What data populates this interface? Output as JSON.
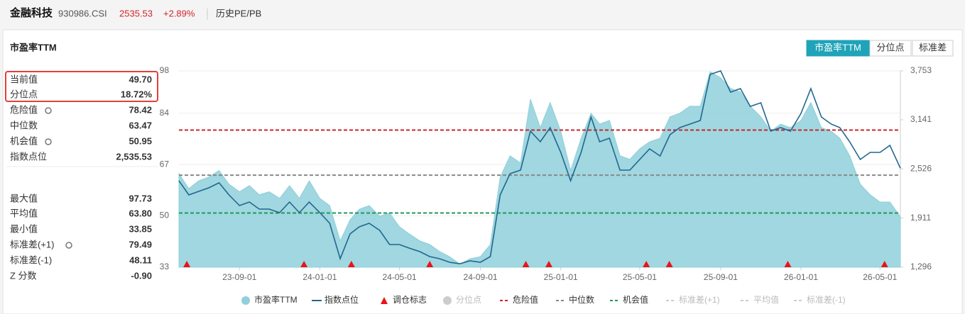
{
  "header": {
    "name": "金融科技",
    "code": "930986.CSI",
    "price": "2535.53",
    "change": "+2.89%",
    "tab": "历史PE/PB"
  },
  "panel": {
    "title": "市盈率TTM",
    "buttons": [
      "市盈率TTM",
      "分位点",
      "标准差"
    ]
  },
  "stats": [
    {
      "name": "当前值",
      "value": "49.70"
    },
    {
      "name": "分位点",
      "value": "18.72%"
    },
    {
      "name": "危险值",
      "value": "78.42"
    },
    {
      "name": "中位数",
      "value": "63.47"
    },
    {
      "name": "机会值",
      "value": "50.95"
    },
    {
      "name": "指数点位",
      "value": "2,535.53"
    },
    {
      "name": "最大值",
      "value": "97.73"
    },
    {
      "name": "平均值",
      "value": "63.80"
    },
    {
      "name": "最小值",
      "value": "33.85"
    },
    {
      "name": "标准差(+1)",
      "value": "79.49"
    },
    {
      "name": "标准差(-1)",
      "value": "48.11"
    },
    {
      "name": "Z 分数",
      "value": "-0.90"
    }
  ],
  "chart_data": {
    "type": "area-line",
    "x": [
      "23-06-01",
      "23-06-16",
      "23-07-01",
      "23-07-16",
      "23-08-01",
      "23-08-16",
      "23-09-01",
      "23-09-16",
      "23-10-01",
      "23-10-16",
      "23-11-01",
      "23-11-16",
      "23-12-01",
      "23-12-16",
      "24-01-01",
      "24-01-16",
      "24-02-01",
      "24-02-16",
      "24-03-01",
      "24-03-16",
      "24-04-01",
      "24-04-16",
      "24-05-01",
      "24-05-16",
      "24-06-01",
      "24-06-16",
      "24-07-01",
      "24-07-16",
      "24-08-01",
      "24-08-16",
      "24-09-01",
      "24-09-16",
      "24-10-01",
      "24-10-16",
      "24-11-01",
      "24-11-16",
      "24-12-01",
      "24-12-16",
      "25-01-01",
      "25-01-16",
      "25-02-01",
      "25-02-16",
      "25-03-01",
      "25-03-16",
      "25-04-01",
      "25-04-16",
      "25-05-01",
      "25-05-16",
      "25-06-01",
      "25-06-16",
      "25-07-01",
      "25-07-16",
      "25-08-01",
      "25-08-16",
      "25-09-01",
      "25-09-16",
      "25-10-01",
      "25-10-16",
      "25-11-01",
      "25-11-16",
      "25-12-01",
      "25-12-16",
      "26-01-01",
      "26-01-16",
      "26-02-01",
      "26-02-16",
      "26-03-01",
      "26-03-16",
      "26-04-01",
      "26-04-16",
      "26-05-01",
      "26-05-16",
      "26-06-01"
    ],
    "xlim": [
      "23-06-01",
      "26-06-01"
    ],
    "xticks": [
      "23-09-01",
      "24-01-01",
      "24-05-01",
      "24-09-01",
      "25-01-01",
      "25-05-01",
      "25-09-01",
      "26-01-01",
      "26-05-01"
    ],
    "series": [
      {
        "name": "市盈率TTM",
        "color": "#8fd0da",
        "values": [
          64,
          59,
          61.6,
          62.8,
          65,
          60.5,
          58,
          60,
          57,
          58,
          55.8,
          60,
          55.8,
          61.6,
          55.8,
          53.4,
          41.7,
          48.7,
          52.2,
          53.4,
          49.9,
          51,
          46.4,
          44,
          41.7,
          40.5,
          38.2,
          36.5,
          34,
          35.8,
          36.5,
          40.5,
          62.8,
          69.9,
          67.5,
          88.6,
          79.2,
          87.5,
          78,
          65,
          75.7,
          84,
          80.4,
          81.6,
          69.9,
          68.7,
          72.2,
          74.5,
          75.7,
          82.8,
          84,
          86.3,
          86.3,
          97.7,
          95.7,
          92.2,
          91,
          86.3,
          82.8,
          78,
          80.4,
          79.2,
          81.6,
          87.5,
          79.2,
          78,
          75.7,
          69.9,
          60.5,
          57,
          54.6,
          54.6,
          49.7
        ]
      },
      {
        "name": "指数点位",
        "color": "#22678f",
        "axis": "y2",
        "values": [
          2378,
          2201,
          2245,
          2289,
          2352,
          2201,
          2068,
          2112,
          2023,
          2023,
          1979,
          2112,
          1979,
          2112,
          1979,
          1846,
          1402,
          1713,
          1802,
          1846,
          1757,
          1580,
          1580,
          1535,
          1491,
          1429,
          1402,
          1358,
          1340,
          1376,
          1358,
          1429,
          2201,
          2467,
          2511,
          2999,
          2866,
          3043,
          2733,
          2378,
          2733,
          3176,
          2866,
          2910,
          2511,
          2511,
          2644,
          2777,
          2688,
          2955,
          3043,
          3087,
          3132,
          3709,
          3753,
          3487,
          3531,
          3309,
          3354,
          2999,
          3043,
          2999,
          3221,
          3531,
          3176,
          3087,
          3043,
          2866,
          2644,
          2733,
          2733,
          2821,
          2535.53
        ]
      }
    ],
    "markers": {
      "name": "调仓标志",
      "color": "#e8141b",
      "dates": [
        "23-06-13",
        "23-12-08",
        "24-02-18",
        "24-06-16",
        "24-11-09",
        "24-12-14",
        "25-05-11",
        "25-06-15",
        "25-12-12",
        "26-05-08"
      ]
    },
    "lines": [
      {
        "name": "危险值",
        "color": "#c9262c",
        "value": 78.42
      },
      {
        "name": "中位数",
        "color": "#888888",
        "value": 63.47
      },
      {
        "name": "机会值",
        "color": "#1e9a5a",
        "value": 50.95
      }
    ],
    "hidden": [
      {
        "name": "分位点"
      },
      {
        "name": "标准差(+1)"
      },
      {
        "name": "平均值"
      },
      {
        "name": "标准差(-1)"
      }
    ],
    "ylim": [
      33,
      98
    ],
    "yticks": [
      33,
      50,
      67,
      84,
      98
    ],
    "y2lim": [
      1296,
      3753
    ],
    "y2ticks": [
      {
        "value": 1296,
        "label": "1,296"
      },
      {
        "value": 1911,
        "label": "1,911"
      },
      {
        "value": 2526,
        "label": "2,526"
      },
      {
        "value": 3141,
        "label": "3,141"
      },
      {
        "value": 3753,
        "label": "3,753"
      }
    ],
    "grid": true
  }
}
